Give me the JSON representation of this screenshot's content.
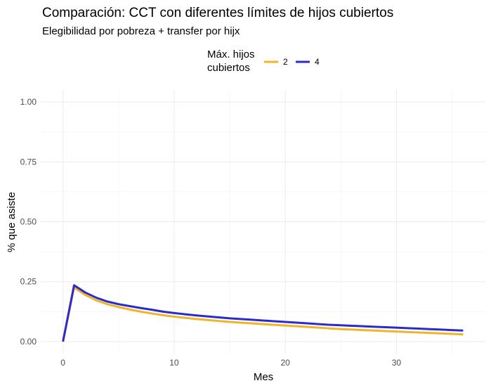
{
  "figure": {
    "title": "Comparación: CCT con diferentes límites de hijos cubiertos",
    "subtitle": "Elegibilidad por pobreza + transfer por hijx"
  },
  "legend": {
    "title_line1": "Máx. hijos",
    "title_line2": "cubiertos",
    "placement": "top"
  },
  "chart_data": {
    "type": "line",
    "title": "Comparación: CCT con diferentes límites de hijos cubiertos",
    "subtitle": "Elegibilidad por pobreza + transfer por hijx",
    "xlabel": "Mes",
    "ylabel": "% que asiste",
    "xlim": [
      -2,
      38
    ],
    "ylim": [
      -0.05,
      1.05
    ],
    "x_ticks": [
      0,
      10,
      20,
      30
    ],
    "x_tick_labels": [
      "0",
      "10",
      "20",
      "30"
    ],
    "y_ticks": [
      0,
      0.25,
      0.5,
      0.75,
      1
    ],
    "y_tick_labels": [
      "0.00",
      "0.25",
      "0.50",
      "0.75",
      "1.00"
    ],
    "grid": true,
    "legend_title": "Máx. hijos cubiertos",
    "x": [
      0,
      1,
      2,
      3,
      4,
      5,
      6,
      7,
      8,
      9,
      10,
      11,
      12,
      13,
      14,
      15,
      16,
      17,
      18,
      19,
      20,
      21,
      22,
      23,
      24,
      25,
      26,
      27,
      28,
      29,
      30,
      31,
      32,
      33,
      34,
      35,
      36
    ],
    "series": [
      {
        "name": "2",
        "color": "#f0b429",
        "values": [
          0.0,
          0.225,
          0.195,
          0.172,
          0.156,
          0.144,
          0.134,
          0.125,
          0.117,
          0.11,
          0.104,
          0.099,
          0.094,
          0.09,
          0.086,
          0.082,
          0.079,
          0.076,
          0.073,
          0.07,
          0.067,
          0.064,
          0.061,
          0.058,
          0.055,
          0.052,
          0.05,
          0.048,
          0.046,
          0.044,
          0.042,
          0.04,
          0.038,
          0.036,
          0.034,
          0.032,
          0.03
        ]
      },
      {
        "name": "4",
        "color": "#2b2bcc",
        "values": [
          0.0,
          0.235,
          0.205,
          0.183,
          0.167,
          0.156,
          0.148,
          0.14,
          0.133,
          0.125,
          0.119,
          0.114,
          0.109,
          0.105,
          0.101,
          0.097,
          0.094,
          0.091,
          0.088,
          0.085,
          0.082,
          0.079,
          0.076,
          0.073,
          0.07,
          0.068,
          0.066,
          0.064,
          0.062,
          0.06,
          0.058,
          0.056,
          0.054,
          0.052,
          0.05,
          0.048,
          0.046
        ]
      }
    ]
  }
}
